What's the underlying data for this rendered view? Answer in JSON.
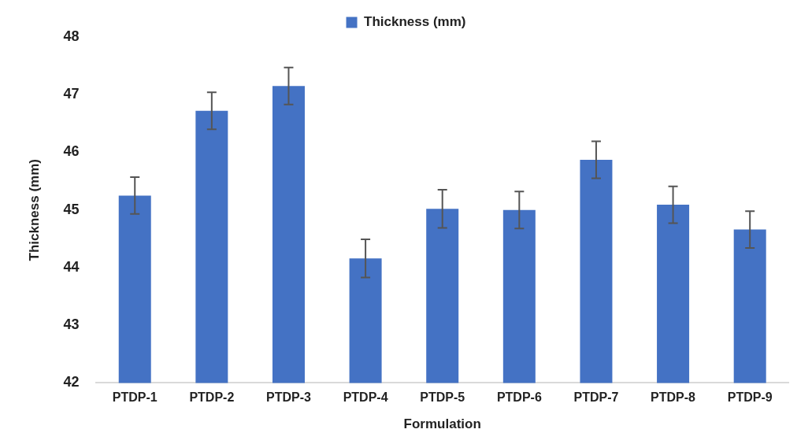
{
  "chart_data": {
    "type": "bar",
    "xlabel": "Formulation",
    "ylabel": "Thickness (mm)",
    "categories": [
      "PTDP-1",
      "PTDP-2",
      "PTDP-3",
      "PTDP-4",
      "PTDP-5",
      "PTDP-6",
      "PTDP-7",
      "PTDP-8",
      "PTDP-9"
    ],
    "series": [
      {
        "name": "Thickness (mm)",
        "color": "#4472c4",
        "values": [
          45.25,
          46.72,
          47.15,
          44.16,
          45.02,
          45.0,
          45.87,
          45.09,
          44.66
        ],
        "errors": [
          0.32,
          0.32,
          0.32,
          0.33,
          0.33,
          0.32,
          0.32,
          0.32,
          0.32
        ]
      }
    ],
    "ylim": [
      42,
      48
    ],
    "yticks": [
      42,
      43,
      44,
      45,
      46,
      47,
      48
    ],
    "grid": false,
    "legend": "top"
  }
}
